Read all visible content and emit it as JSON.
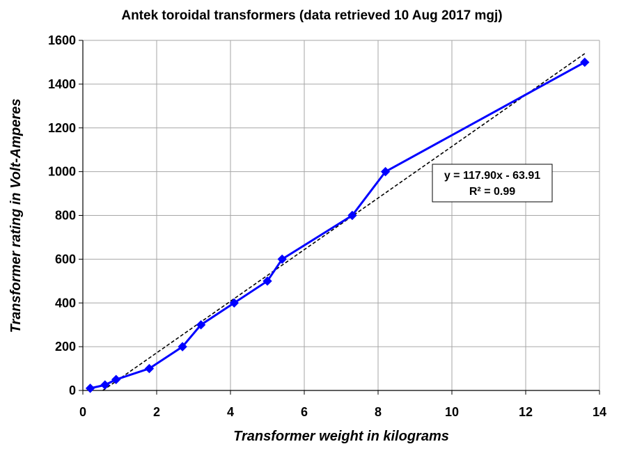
{
  "chart_data": {
    "type": "line",
    "title": "Antek toroidal transformers (data retrieved 10 Aug 2017 mgj)",
    "xlabel": "Transformer weight in kilograms",
    "ylabel": "Transformer rating in Volt-Amperes",
    "xlim": [
      0,
      14
    ],
    "ylim": [
      0,
      1600
    ],
    "x_ticks": [
      "0",
      "2",
      "4",
      "6",
      "8",
      "10",
      "12",
      "14"
    ],
    "y_ticks": [
      "0",
      "200",
      "400",
      "600",
      "800",
      "1000",
      "1200",
      "1400",
      "1600"
    ],
    "grid": true,
    "series": [
      {
        "color": "#0000ff",
        "marker": "diamond",
        "x": [
          0.2,
          0.6,
          0.9,
          1.8,
          2.7,
          3.2,
          4.1,
          5.0,
          5.4,
          7.3,
          8.2,
          13.6
        ],
        "y": [
          10,
          25,
          50,
          100,
          200,
          300,
          400,
          500,
          600,
          800,
          1000,
          1500
        ]
      }
    ],
    "trendline": {
      "slope": 117.9,
      "intercept": -63.91,
      "x_range": [
        0.54,
        13.6
      ],
      "style": "dashed",
      "color": "#000000"
    },
    "annotation": {
      "line1": "y = 117.90x - 63.91",
      "line2": "R² = 0.99"
    }
  }
}
